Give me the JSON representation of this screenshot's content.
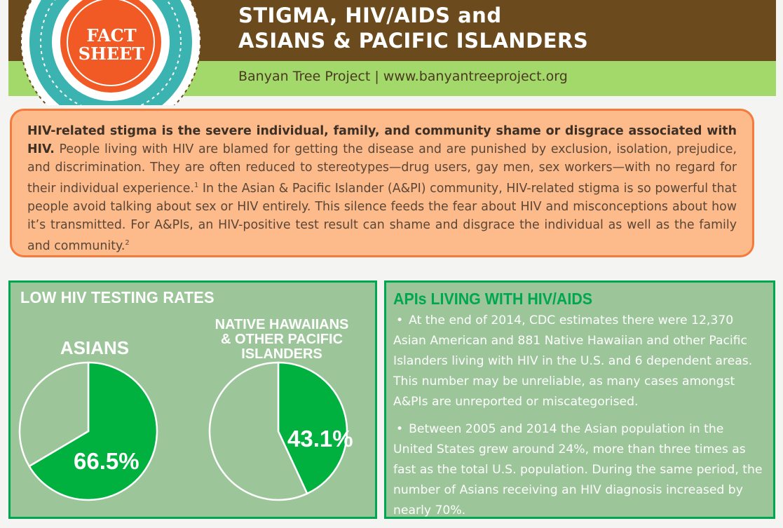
{
  "badge": {
    "line1": "FACT",
    "line2": "SHEET"
  },
  "header": {
    "title_line1": "STIGMA, HIV/AIDS and",
    "title_line2": "ASIANS & PACIFIC ISLANDERS",
    "org_line": "Banyan Tree Project | www.banyantreeproject.org"
  },
  "intro": {
    "bold_lead": "HIV-related stigma is the severe individual, family, and community shame or disgrace associated with HIV.",
    "text_part1": " People living with HIV are blamed for getting the disease and are punished by exclusion, isolation, prejudice, and discrimination. They are often reduced to stereotypes—drug users, gay men, sex workers—with no regard for their individual experience.",
    "ref1": "1",
    "text_part2": " In the Asian & Pacific Islander (A&PI) community, HIV-related stigma is so powerful that people avoid talking about sex or HIV entirely. This silence feeds the fear about HIV and misconceptions about how it’s transmitted. For A&PIs, an HIV-positive test result can shame and disgrace the individual as well as the family and community.",
    "ref2": "2"
  },
  "testing_panel": {
    "title": "LOW HIV TESTING RATES",
    "asians_label": "ASIANS",
    "nhpi_label_line1": "NATIVE HAWAIIANS",
    "nhpi_label_line2": "& OTHER PACIFIC",
    "nhpi_label_line3": "ISLANDERS",
    "asians_pct_text": "66.5%",
    "nhpi_pct_text": "43.1%"
  },
  "chart_data": [
    {
      "type": "pie",
      "title": "ASIANS",
      "values": [
        66.5,
        33.5
      ],
      "labels": [
        "66.5%",
        ""
      ],
      "colors": [
        "#00b140",
        "#9cc69a"
      ]
    },
    {
      "type": "pie",
      "title": "NATIVE HAWAIIANS & OTHER PACIFIC ISLANDERS",
      "values": [
        43.1,
        56.9
      ],
      "labels": [
        "43.1%",
        ""
      ],
      "colors": [
        "#00b140",
        "#9cc69a"
      ]
    }
  ],
  "living_panel": {
    "title": "APIs LIVING WITH HIV/AIDS",
    "bullet1": "At the end of 2014, CDC estimates there were 12,370 Asian American and 881 Native Hawaiian and other Pacific Islanders living with HIV in the U.S. and 6 dependent areas. This number may be unreliable, as many cases amongst A&PIs are unreported or miscategorised.",
    "bullet2": "Between 2005 and 2014 the Asian population in the United States grew around 24%, more than three times as fast as the total U.S. population. During the same period, the number of Asians receiving an HIV diagnosis increased by nearly 70%."
  },
  "colors": {
    "header_brown": "#6b4a1d",
    "header_green": "#a3d96b",
    "intro_fill": "#fdbb8c",
    "intro_border": "#f47b3b",
    "panel_fill": "#9cc69a",
    "accent_green": "#00a651",
    "badge_orange": "#f15a24",
    "badge_teal": "#3bb3b0"
  }
}
